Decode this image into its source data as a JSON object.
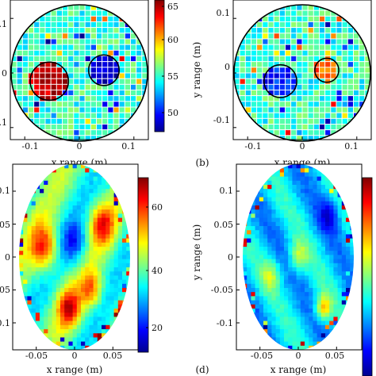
{
  "colormap": [
    "#00008f",
    "#0000ff",
    "#0080ff",
    "#00ffff",
    "#80ff80",
    "#ffff00",
    "#ff8000",
    "#ff0000",
    "#800000"
  ],
  "chart_data": [
    {
      "type": "heatmap",
      "title": "",
      "xlabel": "x range (m)",
      "ylabel": "",
      "xticks": [
        "-0.1",
        "0",
        "0.1"
      ],
      "yticks": [
        "0.1",
        "0",
        "0.1"
      ],
      "xlim": [
        -0.125,
        0.125
      ],
      "ylim": [
        -0.125,
        0.125
      ],
      "grid": "square pixels with white grid lines, circular domain",
      "colorbar": {
        "ticks": [
          "65",
          "60",
          "55",
          "50"
        ],
        "range": [
          47,
          66
        ]
      },
      "background_value": 55,
      "inclusions": [
        {
          "cx": -0.055,
          "cy": -0.015,
          "r": 0.035,
          "value": 65
        },
        {
          "cx": 0.045,
          "cy": 0.005,
          "r": 0.028,
          "value": 48
        }
      ]
    },
    {
      "type": "heatmap",
      "panel_label": "(b)",
      "title": "",
      "xlabel": "x range (m)",
      "ylabel": "y range (m)",
      "xticks": [
        "-0.1",
        "0",
        "0.1"
      ],
      "yticks": [
        "0.1",
        "0",
        "-0.1"
      ],
      "xlim": [
        -0.125,
        0.125
      ],
      "ylim": [
        -0.125,
        0.125
      ],
      "grid": "square pixels with white grid lines, circular domain",
      "background_value": 55,
      "inclusions": [
        {
          "cx": -0.04,
          "cy": -0.015,
          "r": 0.03,
          "value": 50
        },
        {
          "cx": 0.045,
          "cy": 0.005,
          "r": 0.022,
          "value": 62
        }
      ]
    },
    {
      "type": "heatmap",
      "title": "",
      "xlabel": "x range (m)",
      "ylabel": "",
      "xticks": [
        "-0.05",
        "0",
        "0.05"
      ],
      "yticks": [
        "0.1",
        "0.05",
        "0",
        "0.05",
        "0.1"
      ],
      "xlim": [
        -0.08,
        0.08
      ],
      "ylim": [
        -0.125,
        0.125
      ],
      "grid": "off, elliptical domain",
      "colorbar": {
        "ticks": [
          "60",
          "40",
          "20"
        ],
        "range": [
          15,
          70
        ]
      }
    },
    {
      "type": "heatmap",
      "panel_label": "(d)",
      "title": "",
      "xlabel": "x range (m)",
      "ylabel": "y range (m)",
      "xticks": [
        "-0.05",
        "0",
        "0.05"
      ],
      "yticks": [
        "0.1",
        "0.05",
        "0",
        "-0.05",
        "-0.1"
      ],
      "xlim": [
        -0.08,
        0.08
      ],
      "ylim": [
        -0.125,
        0.125
      ],
      "grid": "off, elliptical domain"
    }
  ]
}
